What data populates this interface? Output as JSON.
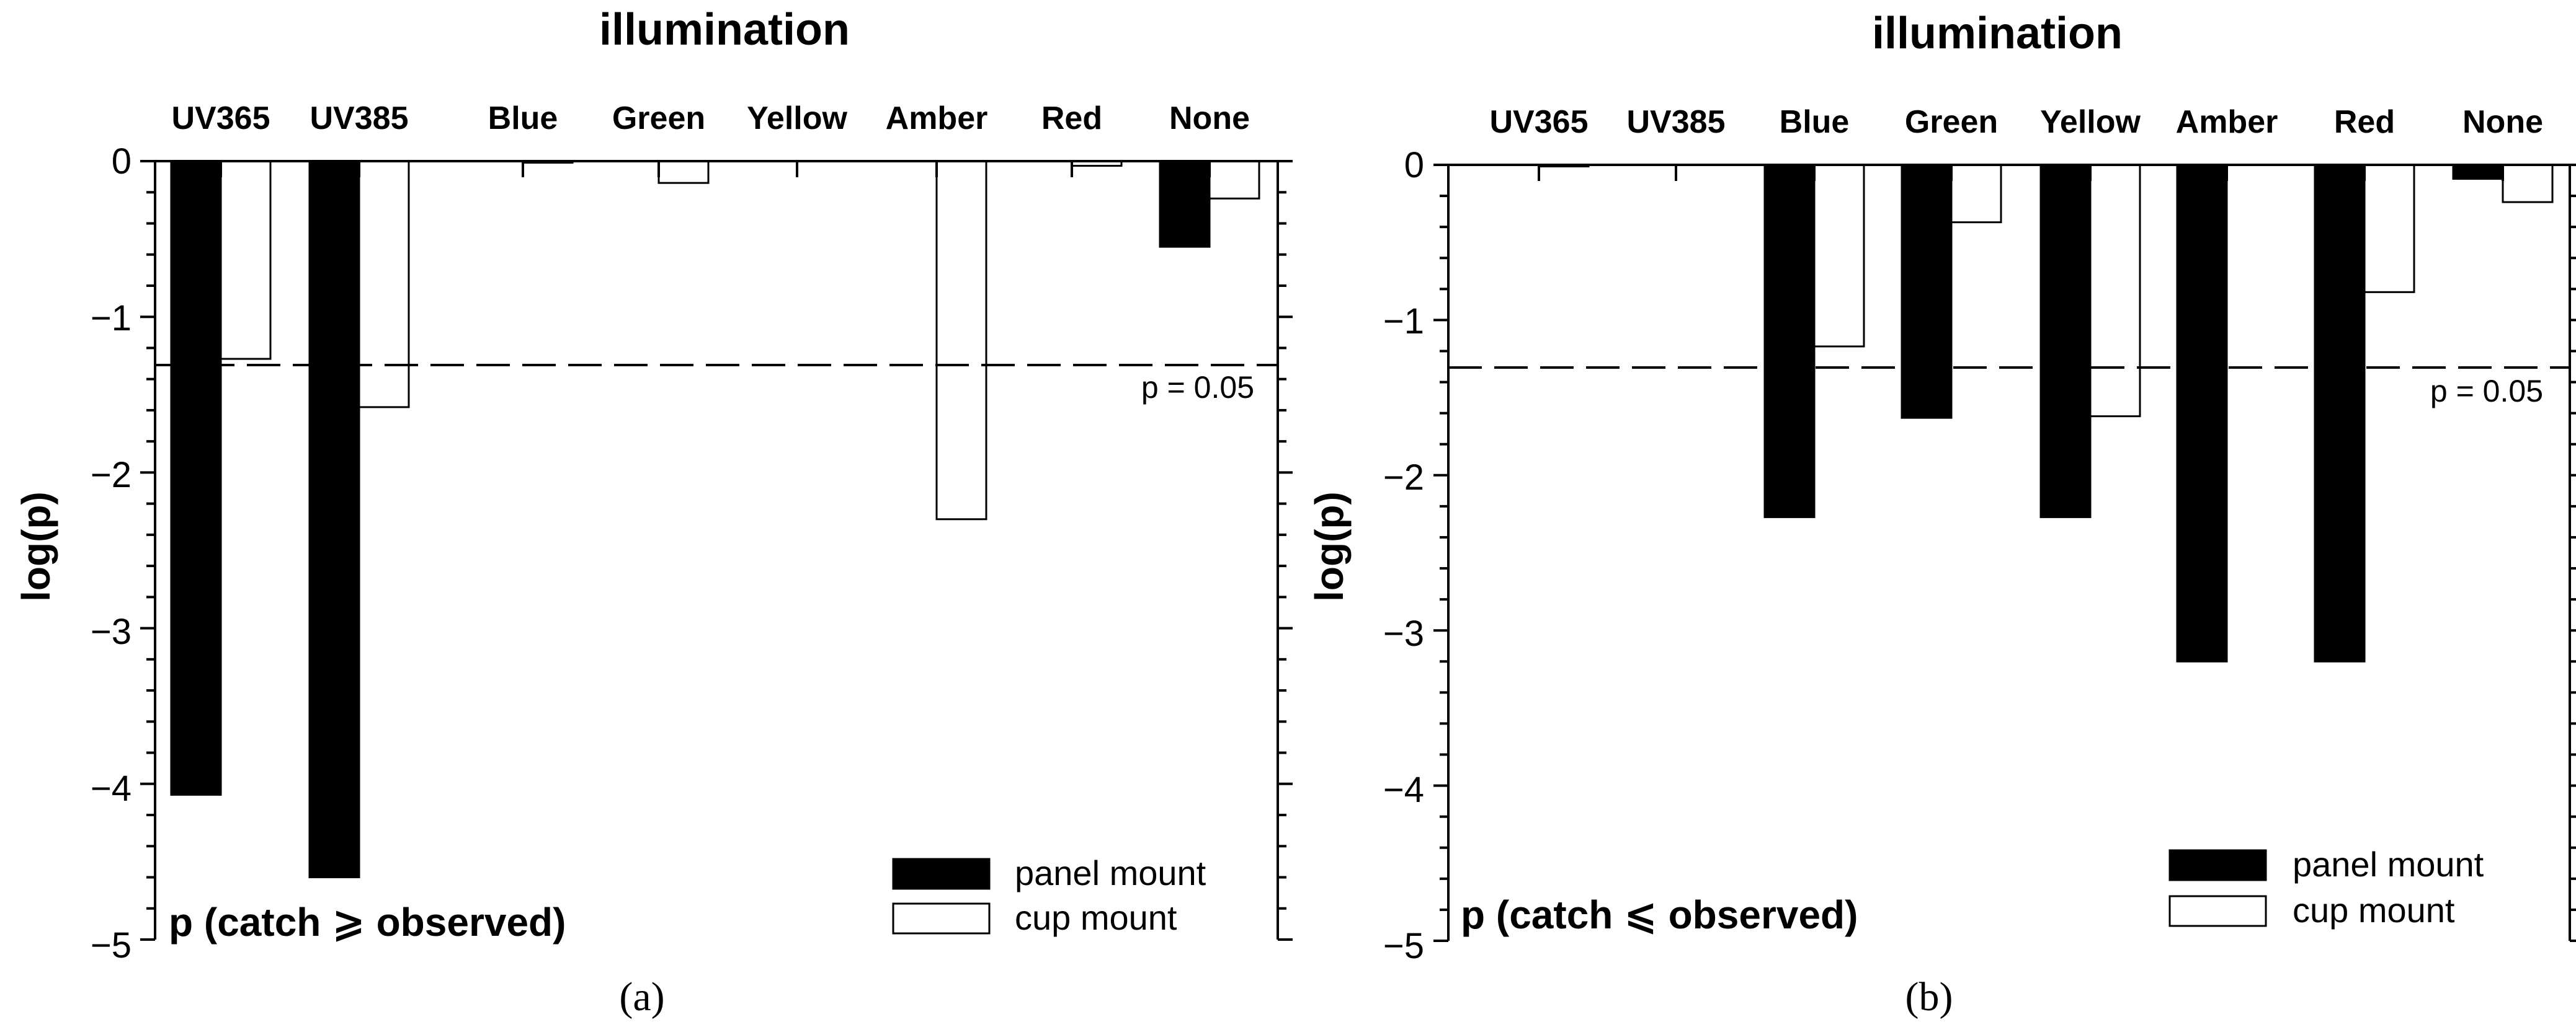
{
  "chart_data": [
    {
      "type": "bar",
      "panel_label": "(a)",
      "title": "illumination",
      "ylabel": "log(p)",
      "xlabel": "",
      "note": "p (catch ⩾ observed)",
      "categories": [
        "UV365",
        "UV385",
        "Blue",
        "Green",
        "Yellow",
        "Amber",
        "Red",
        "None"
      ],
      "series": [
        {
          "name": "panel mount",
          "fill": "#000000",
          "values": [
            -4.07,
            -4.6,
            0,
            0,
            0,
            0,
            0,
            -0.55
          ]
        },
        {
          "name": "cup mount",
          "fill": "#ffffff",
          "values": [
            -1.27,
            -1.58,
            -0.01,
            -0.14,
            0,
            -2.3,
            -0.03,
            -0.24
          ]
        }
      ],
      "reference_line": {
        "value": -1.3,
        "label": "p = 0.05",
        "style": "dashed"
      },
      "ylim": [
        -5,
        0
      ],
      "yticks": [
        0,
        -1,
        -2,
        -3,
        -4,
        -5
      ],
      "ytick_labels": [
        "0",
        "−1",
        "−2",
        "−3",
        "−4",
        "−5"
      ],
      "legend": "bottom-right",
      "category_axis": "top"
    },
    {
      "type": "bar",
      "panel_label": "(b)",
      "title": "illumination",
      "ylabel": "log(p)",
      "xlabel": "",
      "note": "p (catch ⩽ observed)",
      "categories": [
        "UV365",
        "UV385",
        "Blue",
        "Green",
        "Yellow",
        "Amber",
        "Red",
        "None"
      ],
      "series": [
        {
          "name": "panel mount",
          "fill": "#000000",
          "values": [
            0,
            0,
            -2.27,
            -1.63,
            -2.27,
            -3.2,
            -3.2,
            -0.09
          ]
        },
        {
          "name": "cup mount",
          "fill": "#ffffff",
          "values": [
            -0.01,
            0,
            -1.17,
            -0.37,
            -1.62,
            0,
            -0.82,
            -0.24
          ]
        }
      ],
      "reference_line": {
        "value": -1.3,
        "label": "p = 0.05",
        "style": "dashed"
      },
      "ylim": [
        -5,
        0
      ],
      "yticks": [
        0,
        -1,
        -2,
        -3,
        -4,
        -5
      ],
      "ytick_labels": [
        "0",
        "−1",
        "−2",
        "−3",
        "−4",
        "−5"
      ],
      "legend": "bottom-right",
      "category_axis": "top"
    }
  ]
}
